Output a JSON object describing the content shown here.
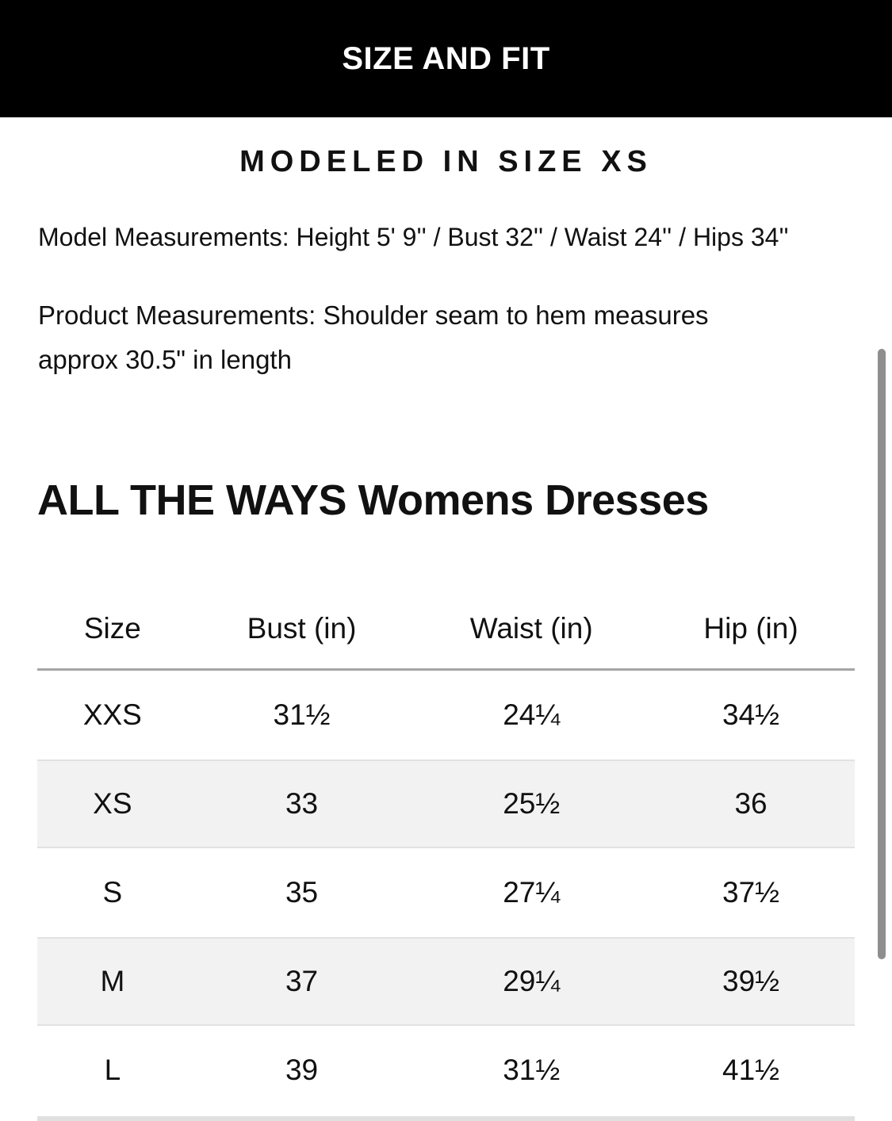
{
  "header": {
    "title": "SIZE AND FIT"
  },
  "fit_info": {
    "modeled_in": "MODELED IN SIZE XS",
    "model_measurements": "Model Measurements: Height 5' 9'' / Bust 32'' / Waist 24'' / Hips 34''",
    "product_measurements": "Product Measurements: Shoulder seam to hem measures approx 30.5\" in length"
  },
  "size_chart": {
    "title": "ALL THE WAYS Womens Dresses",
    "columns": [
      "Size",
      "Bust (in)",
      "Waist (in)",
      "Hip (in)"
    ],
    "rows": [
      {
        "size": "XXS",
        "bust": "31½",
        "waist": "24¼",
        "hip": "34½"
      },
      {
        "size": "XS",
        "bust": "33",
        "waist": "25½",
        "hip": "36"
      },
      {
        "size": "S",
        "bust": "35",
        "waist": "27¼",
        "hip": "37½"
      },
      {
        "size": "M",
        "bust": "37",
        "waist": "29¼",
        "hip": "39½"
      },
      {
        "size": "L",
        "bust": "39",
        "waist": "31½",
        "hip": "41½"
      }
    ]
  },
  "colors": {
    "header_bg": "#000000",
    "header_text": "#ffffff",
    "body_text": "#111111",
    "stripe_row_bg": "#f2f2f2",
    "divider": "#a5a5a5",
    "scrollbar": "#8e8e8e"
  }
}
